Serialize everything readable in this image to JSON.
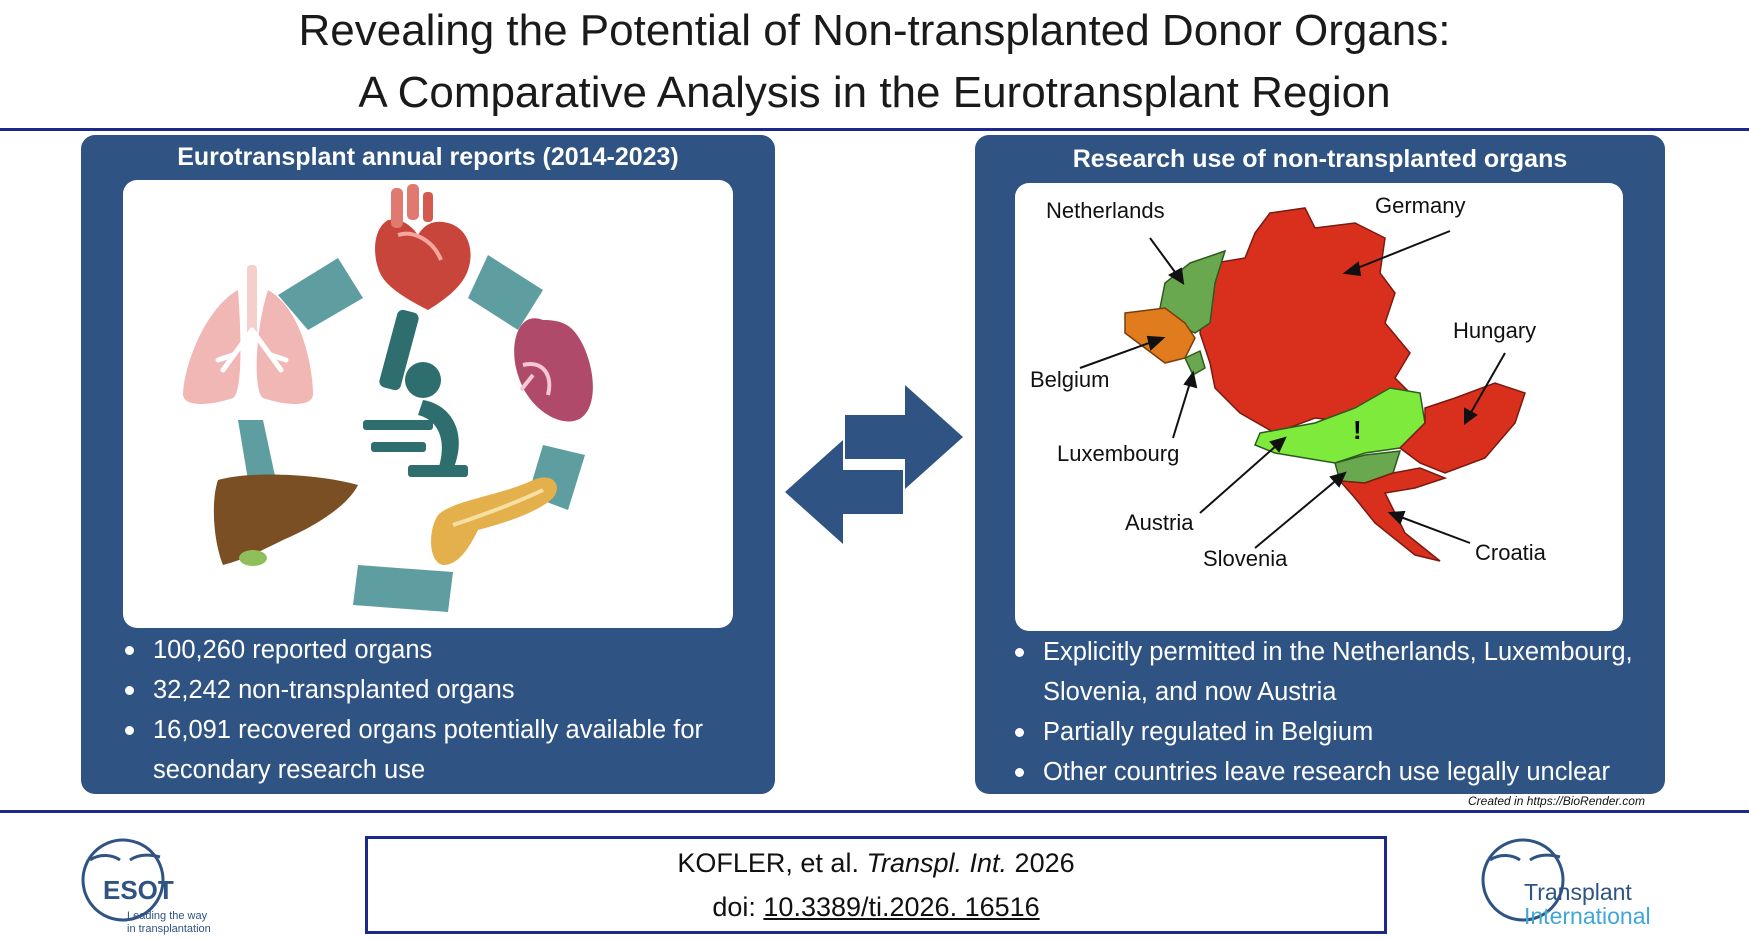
{
  "title": {
    "line1": "Revealing the Potential of Non-transplanted Donor Organs:",
    "line2": "A Comparative Analysis in the Eurotransplant Region"
  },
  "left_panel": {
    "heading": "Eurotransplant annual reports (2014-2023)",
    "bullets": [
      "100,260 reported organs",
      "32,242 non-transplanted organs",
      "16,091 recovered organs potentially available for",
      "secondary research use"
    ],
    "icons": [
      "heart-icon",
      "lungs-icon",
      "kidney-icon",
      "liver-icon",
      "pancreas-icon",
      "microscope-icon"
    ]
  },
  "right_panel": {
    "heading": "Research use of non-transplanted organs",
    "countries": {
      "netherlands": "Netherlands",
      "germany": "Germany",
      "belgium": "Belgium",
      "hungary": "Hungary",
      "luxembourg": "Luxembourg",
      "austria": "Austria",
      "slovenia": "Slovenia",
      "croatia": "Croatia"
    },
    "austria_mark": "!",
    "colors": {
      "permitted": "#6aa84f",
      "newly_permitted": "#7eea3c",
      "partial": "#e07b1e",
      "unclear": "#d9301e"
    },
    "bullets": [
      "Explicitly permitted in the Netherlands, Luxembourg,",
      "Slovenia, and now Austria",
      "Partially regulated in Belgium",
      "Other countries leave research use legally unclear"
    ],
    "credit": "Created in https://BioRender.com"
  },
  "citation": {
    "authors": "KOFLER, et al.",
    "journal": "Transpl. Int.",
    "year": "2026",
    "doi_label": "doi:",
    "doi": "10.3389/ti.2026. 16516"
  },
  "logos": {
    "esot_name": "ESOT",
    "esot_tagline_1": "Leading the way",
    "esot_tagline_2": "in transplantation",
    "ti_line1": "Transplant",
    "ti_line2": "International"
  }
}
